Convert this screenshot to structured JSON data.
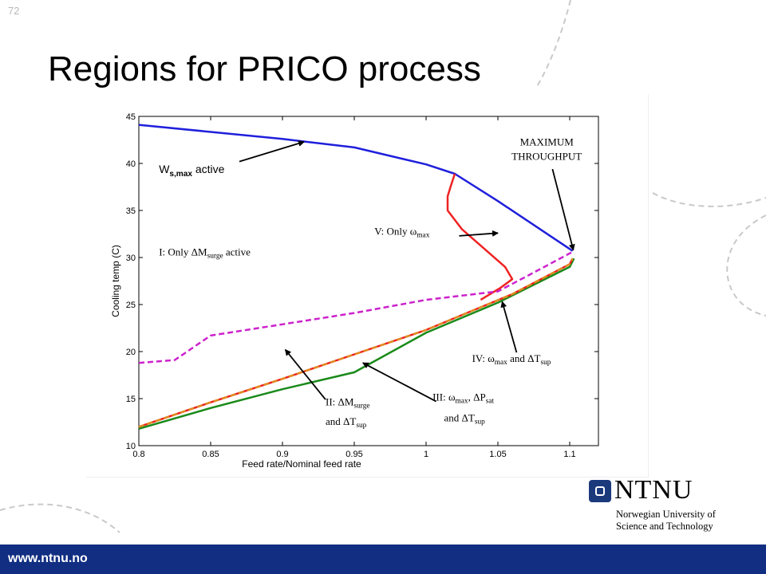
{
  "slide": {
    "number": "72",
    "title": "Regions for PRICO process"
  },
  "footer": {
    "url": "www.ntnu.no"
  },
  "logo": {
    "name": "NTNU",
    "subtitle_line1": "Norwegian University of",
    "subtitle_line2": "Science and Technology"
  },
  "colors": {
    "footer_bar": "#112e82",
    "w_smax": "#1f1fdc",
    "omega_max": "#ee2222",
    "dm_surge": "#cc22cc",
    "dt_sup": "#e08a20",
    "green_curve": "#1a8a1a"
  },
  "chart_data": {
    "type": "line",
    "xlabel": "Feed rate/Nominal feed rate",
    "ylabel": "Cooling temp (C)",
    "xlim": [
      0.8,
      1.12
    ],
    "ylim": [
      10,
      45
    ],
    "xticks": [
      "0.8",
      "0.85",
      "0.9",
      "0.95",
      "1",
      "1.05",
      "1.1"
    ],
    "yticks": [
      "10",
      "15",
      "20",
      "25",
      "30",
      "35",
      "40",
      "45"
    ],
    "grid": false,
    "series": [
      {
        "color": "#1f1fdc",
        "style": "solid",
        "x": [
          0.8,
          0.9,
          0.95,
          1.0,
          1.02,
          1.05,
          1.102
        ],
        "y": [
          44.1,
          42.6,
          41.7,
          39.9,
          38.9,
          36.0,
          30.7
        ]
      },
      {
        "color": "#ee2222",
        "style": "solid",
        "x": [
          1.02,
          1.017,
          1.015,
          1.015,
          1.025,
          1.04,
          1.055,
          1.06,
          1.052,
          1.038
        ],
        "y": [
          38.9,
          37.5,
          36.5,
          35.0,
          33.0,
          31.0,
          29.0,
          27.7,
          26.8,
          25.5
        ]
      },
      {
        "color": "#cc22cc",
        "style": "dashed",
        "x": [
          0.8,
          0.825,
          0.85,
          0.9,
          0.95,
          1.0,
          1.05,
          1.07,
          1.102
        ],
        "y": [
          18.8,
          19.1,
          21.7,
          22.9,
          24.1,
          25.5,
          26.4,
          28.0,
          30.6
        ]
      },
      {
        "color": "#1a8a1a",
        "style": "solid",
        "x": [
          0.8,
          0.85,
          0.9,
          0.95,
          1.0,
          1.05,
          1.1,
          1.103
        ],
        "y": [
          11.8,
          14.0,
          16.0,
          17.8,
          22.0,
          25.2,
          29.0,
          29.9
        ]
      },
      {
        "color": "#ee2222",
        "style": "solid",
        "x": [
          0.8,
          0.85,
          0.9,
          0.95,
          1.0,
          1.03,
          1.06,
          1.1,
          1.102
        ],
        "y": [
          12.0,
          14.6,
          17.1,
          19.7,
          22.3,
          24.2,
          26.1,
          29.3,
          29.9
        ]
      },
      {
        "color": "#e08a20",
        "style": "dashed",
        "x": [
          0.8,
          0.85,
          0.9,
          0.95,
          1.0,
          1.03,
          1.06,
          1.1,
          1.102
        ],
        "y": [
          12.0,
          14.6,
          17.1,
          19.7,
          22.3,
          24.2,
          26.1,
          29.3,
          29.9
        ]
      }
    ],
    "annotations": [
      {
        "id": "w-smax",
        "parts": [
          [
            "W",
            ""
          ],
          [
            "s,max",
            "sub"
          ],
          [
            " active",
            ""
          ]
        ],
        "font": "sans",
        "x": 0.814,
        "y": 39.0,
        "arrow": {
          "from": [
            0.87,
            40.2
          ],
          "to": [
            0.915,
            42.3
          ]
        }
      },
      {
        "id": "region-i",
        "parts": [
          [
            "I: Only ΔM",
            ""
          ],
          [
            "surge",
            "sub"
          ],
          [
            " active",
            ""
          ]
        ],
        "font": "serif",
        "x": 0.814,
        "y": 30.2
      },
      {
        "id": "region-v",
        "parts": [
          [
            "V: Only ω",
            ""
          ],
          [
            "max",
            "sub"
          ]
        ],
        "font": "serif",
        "x": 0.964,
        "y": 32.4,
        "arrow": {
          "from": [
            1.023,
            32.3
          ],
          "to": [
            1.05,
            32.6
          ]
        }
      },
      {
        "id": "max-throughput",
        "parts": [
          [
            "MAXIMUM",
            ""
          ]
        ],
        "font": "serif",
        "x": 1.084,
        "y": 41.9,
        "anchor": "middle"
      },
      {
        "id": "max-throughput-2",
        "parts": [
          [
            "THROUGHPUT",
            ""
          ]
        ],
        "font": "serif",
        "x": 1.084,
        "y": 40.4,
        "anchor": "middle",
        "arrow": {
          "from": [
            1.088,
            39.4
          ],
          "to": [
            1.1025,
            30.8
          ]
        }
      },
      {
        "id": "region-iv",
        "parts": [
          [
            "IV: ω",
            ""
          ],
          [
            "max",
            "sub"
          ],
          [
            " and ΔT",
            ""
          ],
          [
            "sup",
            "sub"
          ]
        ],
        "font": "serif",
        "x": 1.032,
        "y": 18.9,
        "arrow": {
          "from": [
            1.063,
            19.9
          ],
          "to": [
            1.053,
            25.3
          ]
        }
      },
      {
        "id": "region-iii",
        "parts": [
          [
            "III: ω",
            ""
          ],
          [
            "max",
            "sub"
          ],
          [
            ", ΔP",
            ""
          ],
          [
            "sat",
            "sub"
          ]
        ],
        "font": "serif",
        "x": 1.0045,
        "y": 14.8,
        "arrow": {
          "from": [
            1.007,
            14.7
          ],
          "to": [
            0.956,
            18.8
          ]
        }
      },
      {
        "id": "region-iii-2",
        "parts": [
          [
            "and ΔT",
            ""
          ],
          [
            "sup",
            "sub"
          ]
        ],
        "font": "serif",
        "x": 1.0125,
        "y": 12.6
      },
      {
        "id": "region-ii",
        "parts": [
          [
            "II: ΔM",
            ""
          ],
          [
            "surge",
            "sub"
          ]
        ],
        "font": "serif",
        "x": 0.93,
        "y": 14.3,
        "arrow": {
          "from": [
            0.93,
            14.9
          ],
          "to": [
            0.902,
            20.2
          ]
        }
      },
      {
        "id": "region-ii-2",
        "parts": [
          [
            "and ΔT",
            ""
          ],
          [
            "sup",
            "sub"
          ]
        ],
        "font": "serif",
        "x": 0.93,
        "y": 12.2
      }
    ]
  }
}
